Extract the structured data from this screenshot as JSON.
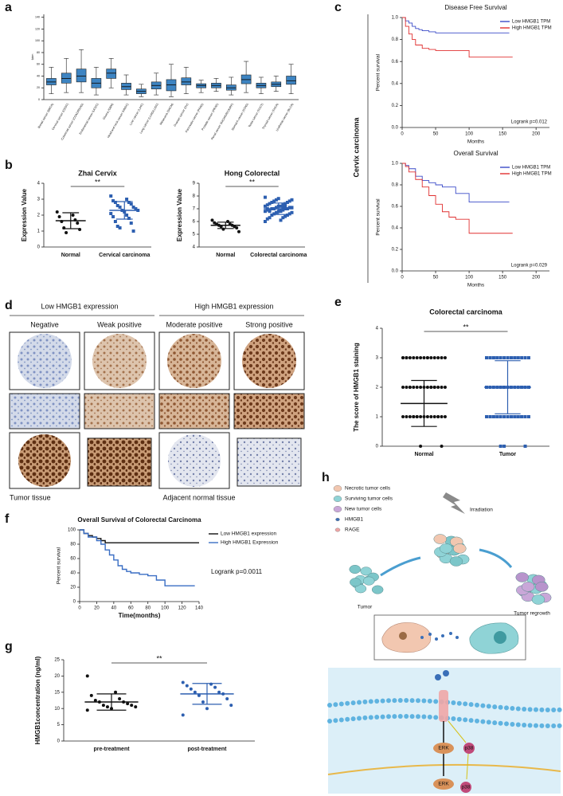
{
  "panel_labels": [
    "a",
    "b",
    "c",
    "d",
    "e",
    "f",
    "g",
    "h"
  ],
  "panel_c_label": "Cervix carcinoma",
  "panel_d": {
    "groups": [
      "Low HMGB1 expression",
      "High HMGB1 expression"
    ],
    "grades": [
      "Negative",
      "Weak positive",
      "Moderate positive",
      "Strong positive"
    ],
    "rows": [
      "Tumor tissue",
      "Adjacent normal tissue"
    ]
  },
  "panel_h": {
    "legend": [
      "Necrotic tumor cells",
      "Surviving tumor cells",
      "New tumor cells",
      "HMGB1",
      "RAGE"
    ],
    "irradiation": "Irradiation",
    "stages": [
      "Tumor",
      "Tumor regrowth"
    ],
    "kinases": [
      "ERK",
      "p38",
      "ERK",
      "p38"
    ]
  },
  "chart_data": [
    {
      "type": "box",
      "ylabel": "fpkm",
      "color": "#3d84c2",
      "categories": [
        "Breast cancer (BRCA)",
        "Cervical cancer (CESC)",
        "Colorectal cancer (COAD/READ)",
        "Endometrial cancer (UCEC)",
        "Glioma (GBM)",
        "Head and neck cancer (HNSC)",
        "Liver cancer (LIHC)",
        "Lung cancer (LUAD/LUSC)",
        "Melanoma (SKCM)",
        "Ovarian cancer (OV)",
        "Pancreatic cancer (PAAD)",
        "Prostate cancer (PRAD)",
        "Renal cancer (KICH/KIRC/KIRP)",
        "Stomach cancer (STAD)",
        "Testis cancer (TGCT)",
        "Thyroid cancer (THCA)",
        "Urothelial cancer (BLCA)"
      ],
      "boxes": [
        {
          "whislo": 10,
          "q1": 25,
          "med": 30,
          "q3": 36,
          "whishi": 55
        },
        {
          "whislo": 12,
          "q1": 28,
          "med": 36,
          "q3": 45,
          "whishi": 70
        },
        {
          "whislo": 12,
          "q1": 30,
          "med": 40,
          "q3": 52,
          "whishi": 85
        },
        {
          "whislo": 8,
          "q1": 20,
          "med": 28,
          "q3": 36,
          "whishi": 55
        },
        {
          "whislo": 20,
          "q1": 36,
          "med": 45,
          "q3": 52,
          "whishi": 70
        },
        {
          "whislo": 8,
          "q1": 17,
          "med": 22,
          "q3": 28,
          "whishi": 42
        },
        {
          "whislo": 5,
          "q1": 10,
          "med": 14,
          "q3": 18,
          "whishi": 26
        },
        {
          "whislo": 8,
          "q1": 18,
          "med": 24,
          "q3": 30,
          "whishi": 45
        },
        {
          "whislo": 5,
          "q1": 15,
          "med": 25,
          "q3": 34,
          "whishi": 60
        },
        {
          "whislo": 10,
          "q1": 25,
          "med": 30,
          "q3": 37,
          "whishi": 55
        },
        {
          "whislo": 12,
          "q1": 20,
          "med": 24,
          "q3": 27,
          "whishi": 33
        },
        {
          "whislo": 14,
          "q1": 20,
          "med": 24,
          "q3": 28,
          "whishi": 36
        },
        {
          "whislo": 8,
          "q1": 16,
          "med": 20,
          "q3": 25,
          "whishi": 38
        },
        {
          "whislo": 12,
          "q1": 27,
          "med": 34,
          "q3": 42,
          "whishi": 65
        },
        {
          "whislo": 10,
          "q1": 20,
          "med": 24,
          "q3": 28,
          "whishi": 38
        },
        {
          "whislo": 14,
          "q1": 22,
          "med": 26,
          "q3": 30,
          "whishi": 40
        },
        {
          "whislo": 10,
          "q1": 26,
          "med": 32,
          "q3": 40,
          "whishi": 60
        }
      ],
      "ylim": [
        0,
        145
      ],
      "yticks": [
        0,
        20,
        40,
        60,
        80,
        100,
        120,
        140
      ]
    },
    {
      "type": "dot",
      "title": "Zhai Cervix",
      "ylabel": "Expression Value",
      "categories": [
        "Normal",
        "Cervical carcinoma"
      ],
      "colors": [
        "#111111",
        "#2d5fb0"
      ],
      "markers": [
        "circle",
        "square"
      ],
      "groups": [
        {
          "values": [
            2.2,
            2.0,
            1.9,
            1.7,
            1.6,
            1.5,
            1.2,
            1.1,
            0.9
          ],
          "mean": 1.65,
          "sd": 0.5
        },
        {
          "values": [
            3.2,
            3.0,
            2.9,
            2.8,
            2.8,
            2.7,
            2.6,
            2.5,
            2.5,
            2.4,
            2.3,
            2.3,
            2.2,
            2.1,
            2.0,
            1.9,
            1.8,
            1.6,
            1.5,
            1.3,
            1.0,
            1.2
          ],
          "mean": 2.3,
          "sd": 0.55
        }
      ],
      "significance": "**",
      "ylim": [
        0,
        4
      ],
      "yticks": [
        0,
        1,
        2,
        3,
        4
      ]
    },
    {
      "type": "dot",
      "title": "Hong Colorectal",
      "ylabel": "Expression Value",
      "categories": [
        "Normal",
        "Colorectal carcinoma"
      ],
      "colors": [
        "#111111",
        "#2d5fb0"
      ],
      "markers": [
        "circle",
        "square"
      ],
      "groups": [
        {
          "values": [
            6.1,
            6.0,
            5.9,
            5.8,
            5.8,
            5.7,
            5.7,
            5.6,
            5.6,
            5.5,
            5.4,
            5.2
          ],
          "mean": 5.7,
          "sd": 0.25
        },
        {
          "values": [
            6.0,
            6.1,
            6.2,
            6.3,
            6.3,
            6.4,
            6.5,
            6.5,
            6.6,
            6.6,
            6.7,
            6.7,
            6.8,
            6.8,
            6.8,
            6.9,
            6.9,
            6.9,
            7.0,
            7.0,
            7.0,
            7.0,
            7.1,
            7.1,
            7.1,
            7.2,
            7.2,
            7.2,
            7.3,
            7.3,
            7.4,
            7.4,
            7.5,
            7.5,
            7.6,
            7.6,
            7.7,
            7.7,
            7.8,
            7.9,
            6.9,
            7.0,
            7.1,
            6.8,
            7.2
          ],
          "mean": 7.0,
          "sd": 0.45
        }
      ],
      "significance": "**",
      "ylim": [
        4,
        9
      ],
      "yticks": [
        4,
        5,
        6,
        7,
        8,
        9
      ]
    },
    {
      "type": "km",
      "title": "Disease Free Survival",
      "xlabel": "Months",
      "ylabel": "Percent survival",
      "legend": "upper right",
      "annotation": "Logrank p=0.012",
      "series": [
        {
          "name": "Low HMGB1 TPM",
          "color": "#3b4bc8",
          "x": [
            0,
            5,
            10,
            15,
            20,
            25,
            30,
            40,
            50,
            160
          ],
          "values": [
            1,
            0.97,
            0.95,
            0.92,
            0.9,
            0.89,
            0.88,
            0.87,
            0.86,
            0.86
          ]
        },
        {
          "name": "High HMGB1 TPM",
          "color": "#e03030",
          "x": [
            0,
            5,
            10,
            15,
            20,
            30,
            40,
            50,
            60,
            100,
            165
          ],
          "values": [
            1,
            0.92,
            0.85,
            0.8,
            0.75,
            0.72,
            0.71,
            0.7,
            0.7,
            0.64,
            0.64
          ]
        }
      ],
      "xlim": [
        0,
        220
      ],
      "xticks": [
        0,
        50,
        100,
        150,
        200
      ],
      "ylim": [
        0,
        1
      ],
      "yticks": [
        {
          "value": 0,
          "label": "0.0"
        },
        0.2,
        0.4,
        0.6,
        0.8,
        {
          "value": 1,
          "label": "1.0"
        }
      ]
    },
    {
      "type": "km",
      "title": "Overall Survival",
      "xlabel": "Months",
      "ylabel": "Percent survival",
      "legend": "upper right",
      "annotation": "Logrank p=0.029",
      "series": [
        {
          "name": "Low HMGB1 TPM",
          "color": "#3b4bc8",
          "x": [
            0,
            5,
            10,
            20,
            30,
            40,
            50,
            60,
            80,
            100,
            160
          ],
          "values": [
            1,
            0.98,
            0.95,
            0.88,
            0.84,
            0.82,
            0.8,
            0.78,
            0.72,
            0.64,
            0.64
          ]
        },
        {
          "name": "High HMGB1 TPM",
          "color": "#e03030",
          "x": [
            0,
            5,
            10,
            20,
            30,
            40,
            50,
            60,
            70,
            80,
            100,
            165
          ],
          "values": [
            1,
            0.97,
            0.92,
            0.85,
            0.78,
            0.7,
            0.62,
            0.55,
            0.5,
            0.48,
            0.35,
            0.35
          ]
        }
      ],
      "xlim": [
        0,
        220
      ],
      "xticks": [
        0,
        50,
        100,
        150,
        200
      ],
      "ylim": [
        0,
        1
      ],
      "yticks": [
        {
          "value": 0,
          "label": "0.0"
        },
        0.2,
        0.4,
        0.6,
        0.8,
        {
          "value": 1,
          "label": "1.0"
        }
      ]
    },
    {
      "type": "dot",
      "title": "Colorectal carcinoma",
      "ylabel": "The score of HMGB1 staining",
      "categories": [
        "Normal",
        "Tumor"
      ],
      "colors": [
        "#111111",
        "#2d5fb0"
      ],
      "markers": [
        "circle",
        "square"
      ],
      "groups": [
        {
          "values": [
            3,
            3,
            3,
            3,
            3,
            3,
            3,
            3,
            3,
            3,
            3,
            3,
            3,
            3,
            3,
            3,
            2,
            2,
            2,
            2,
            2,
            2,
            2,
            2,
            2,
            2,
            2,
            2,
            2,
            2,
            2,
            2,
            1,
            1,
            1,
            1,
            1,
            1,
            1,
            1,
            1,
            1,
            1,
            1,
            1,
            1,
            1,
            1,
            0,
            0
          ],
          "mean": 1.45,
          "sd": 0.78
        },
        {
          "values": [
            3,
            3,
            3,
            3,
            3,
            3,
            3,
            3,
            3,
            3,
            3,
            3,
            3,
            3,
            3,
            3,
            3,
            3,
            3,
            3,
            2,
            2,
            2,
            2,
            2,
            2,
            2,
            2,
            2,
            2,
            2,
            2,
            2,
            2,
            2,
            2,
            2,
            2,
            2,
            2,
            1,
            1,
            1,
            1,
            1,
            1,
            1,
            1,
            1,
            1,
            1,
            1,
            1,
            1,
            1,
            1,
            1,
            1,
            1,
            1,
            0,
            0,
            0
          ],
          "mean": 2.0,
          "sd": 0.9
        }
      ],
      "significance": "**",
      "ylim": [
        0,
        4
      ],
      "yticks": [
        0,
        1,
        2,
        3,
        4
      ]
    },
    {
      "type": "km",
      "title": "Overall Survival of Colorectal Carcinoma",
      "xlabel": "Time(months)",
      "ylabel": "Percent survival",
      "legend": "outside right",
      "annotation": "Logrank p=0.0011",
      "series": [
        {
          "name": "Low HMGB1 expression",
          "color": "#111111",
          "x": [
            0,
            5,
            10,
            15,
            20,
            25,
            30,
            140
          ],
          "values": [
            100,
            95,
            92,
            90,
            88,
            85,
            82,
            82
          ]
        },
        {
          "name": "High HMGB1 Expression",
          "color": "#3a6ec4",
          "x": [
            0,
            5,
            10,
            20,
            25,
            30,
            35,
            40,
            45,
            50,
            55,
            60,
            70,
            80,
            90,
            100,
            135
          ],
          "values": [
            100,
            95,
            90,
            85,
            80,
            72,
            65,
            58,
            50,
            45,
            42,
            40,
            38,
            36,
            30,
            22,
            22
          ]
        }
      ],
      "xlim": [
        0,
        140
      ],
      "xticks": [
        0,
        20,
        40,
        60,
        80,
        100,
        120,
        140
      ],
      "ylim": [
        0,
        100
      ],
      "yticks": [
        0,
        20,
        40,
        60,
        80,
        100
      ]
    },
    {
      "type": "dot",
      "ylabel": "HMGB1concentration (ng/ml)",
      "categories": [
        "pre-treatment",
        "post-treatment"
      ],
      "colors": [
        "#111111",
        "#2d5fb0"
      ],
      "markers": [
        "circle",
        "circle"
      ],
      "groups": [
        {
          "values": [
            20,
            15,
            14,
            13,
            12.5,
            12,
            12,
            11.5,
            11,
            11,
            10.5,
            10.5,
            10,
            9.5
          ],
          "mean": 12,
          "sd": 2.5
        },
        {
          "values": [
            18,
            17.5,
            17,
            16.5,
            16,
            15,
            15,
            14.5,
            14,
            13,
            12,
            11,
            10,
            8
          ],
          "mean": 14.5,
          "sd": 3.2
        }
      ],
      "significance": "**",
      "ylim": [
        0,
        25
      ],
      "yticks": [
        0,
        5,
        10,
        15,
        20,
        25
      ]
    }
  ]
}
